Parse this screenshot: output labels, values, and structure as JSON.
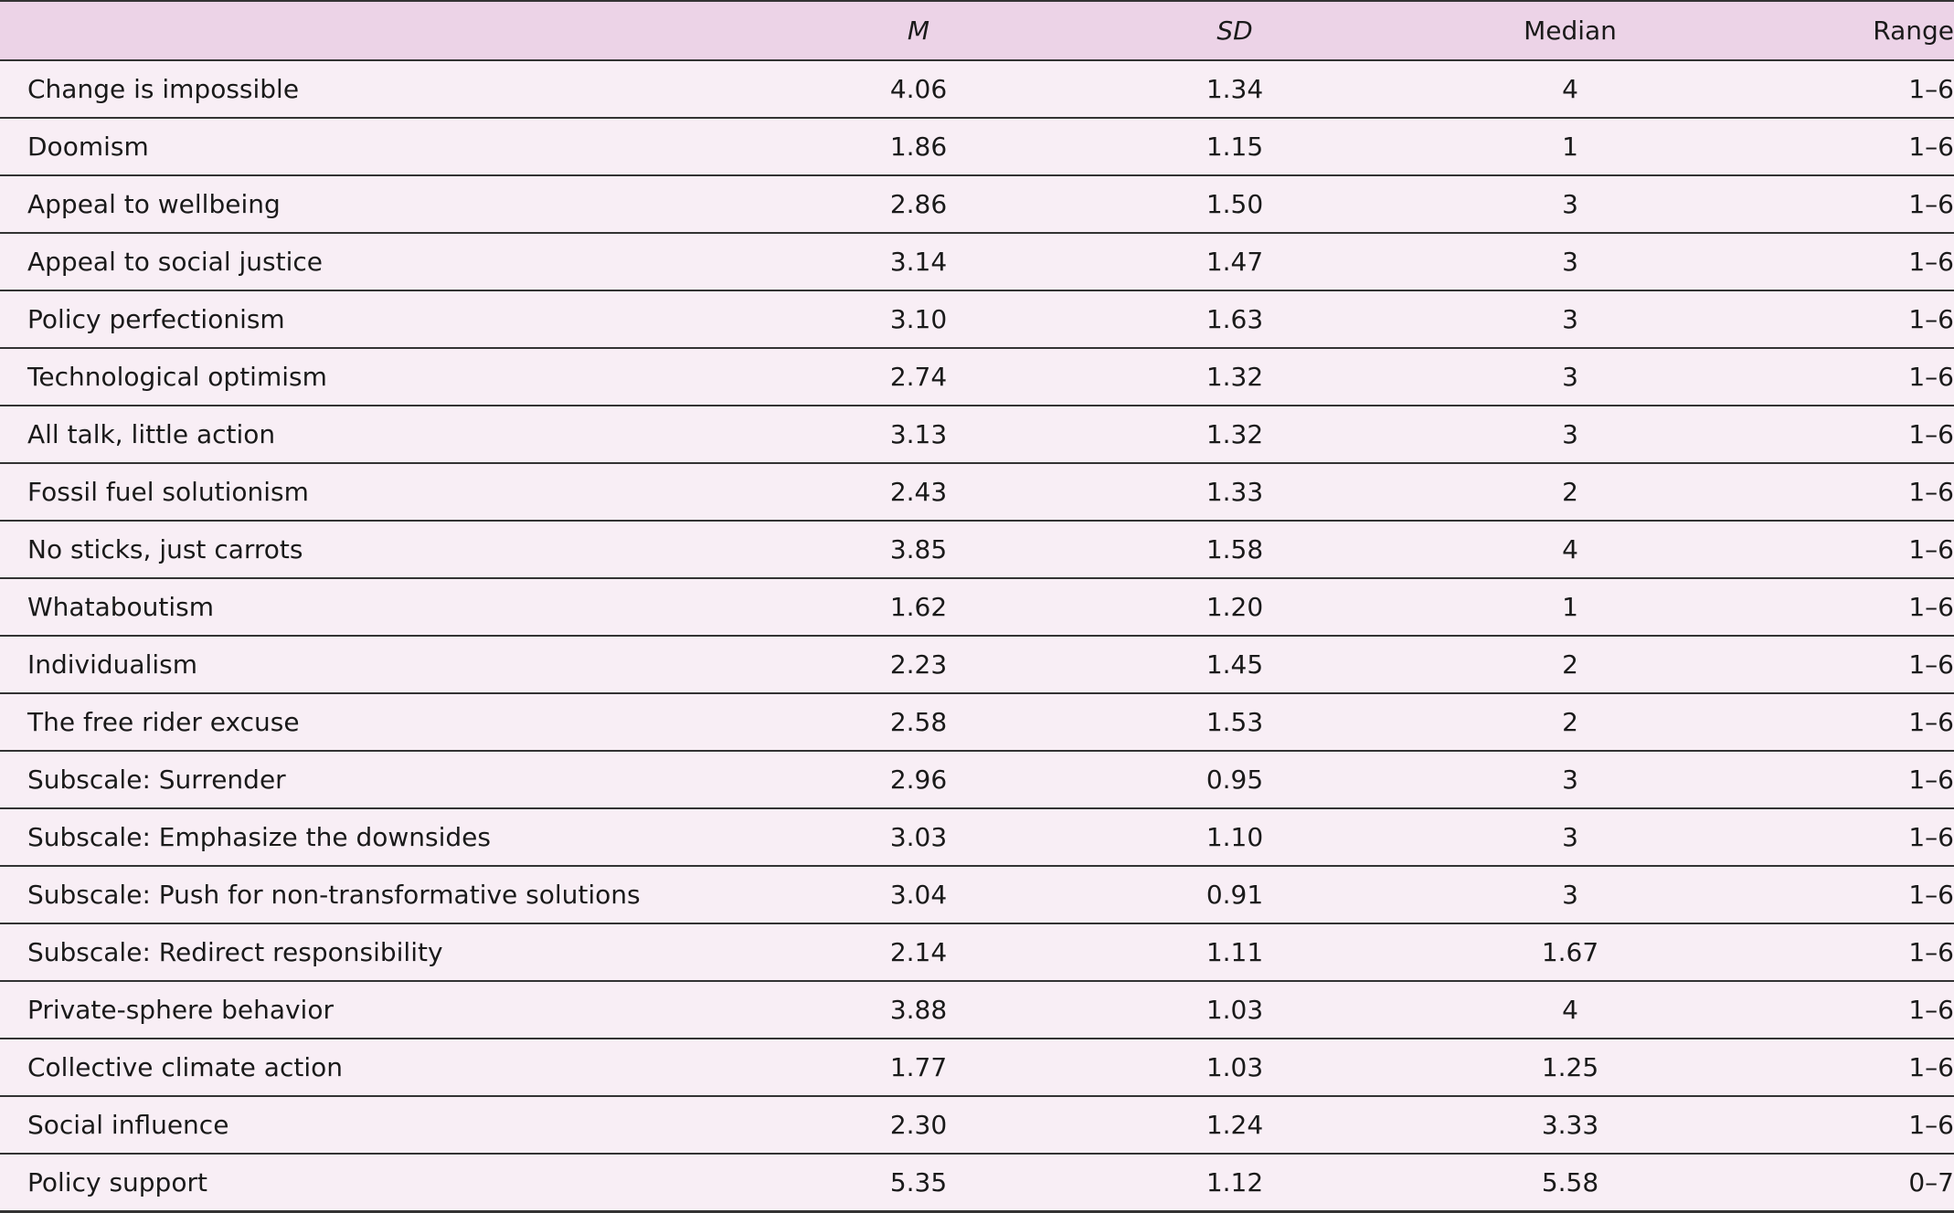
{
  "table": {
    "columns": {
      "label": "",
      "m": "M",
      "sd": "SD",
      "median": "Median",
      "range": "Range"
    },
    "rows": [
      {
        "label": "Change is impossible",
        "m": "4.06",
        "sd": "1.34",
        "median": "4",
        "range": "1–6"
      },
      {
        "label": "Doomism",
        "m": "1.86",
        "sd": "1.15",
        "median": "1",
        "range": "1–6"
      },
      {
        "label": "Appeal to wellbeing",
        "m": "2.86",
        "sd": "1.50",
        "median": "3",
        "range": "1–6"
      },
      {
        "label": "Appeal to social justice",
        "m": "3.14",
        "sd": "1.47",
        "median": "3",
        "range": "1–6"
      },
      {
        "label": "Policy perfectionism",
        "m": "3.10",
        "sd": "1.63",
        "median": "3",
        "range": "1–6"
      },
      {
        "label": "Technological optimism",
        "m": "2.74",
        "sd": "1.32",
        "median": "3",
        "range": "1–6"
      },
      {
        "label": "All talk, little action",
        "m": "3.13",
        "sd": "1.32",
        "median": "3",
        "range": "1–6"
      },
      {
        "label": "Fossil fuel solutionism",
        "m": "2.43",
        "sd": "1.33",
        "median": "2",
        "range": "1–6"
      },
      {
        "label": "No sticks, just carrots",
        "m": "3.85",
        "sd": "1.58",
        "median": "4",
        "range": "1–6"
      },
      {
        "label": "Whataboutism",
        "m": "1.62",
        "sd": "1.20",
        "median": "1",
        "range": "1–6"
      },
      {
        "label": "Individualism",
        "m": "2.23",
        "sd": "1.45",
        "median": "2",
        "range": "1–6"
      },
      {
        "label": "The free rider excuse",
        "m": "2.58",
        "sd": "1.53",
        "median": "2",
        "range": "1–6"
      },
      {
        "label": "Subscale: Surrender",
        "m": "2.96",
        "sd": "0.95",
        "median": "3",
        "range": "1–6"
      },
      {
        "label": "Subscale: Emphasize the downsides",
        "m": "3.03",
        "sd": "1.10",
        "median": "3",
        "range": "1–6"
      },
      {
        "label": "Subscale: Push for non-transformative solutions",
        "m": "3.04",
        "sd": "0.91",
        "median": "3",
        "range": "1–6"
      },
      {
        "label": "Subscale: Redirect responsibility",
        "m": "2.14",
        "sd": "1.11",
        "median": "1.67",
        "range": "1–6"
      },
      {
        "label": "Private-sphere behavior",
        "m": "3.88",
        "sd": "1.03",
        "median": "4",
        "range": "1–6"
      },
      {
        "label": "Collective climate action",
        "m": "1.77",
        "sd": "1.03",
        "median": "1.25",
        "range": "1–6"
      },
      {
        "label": "Social influence",
        "m": "2.30",
        "sd": "1.24",
        "median": "3.33",
        "range": "1–6"
      },
      {
        "label": "Policy support",
        "m": "5.35",
        "sd": "1.12",
        "median": "5.58",
        "range": "0–7"
      }
    ]
  }
}
